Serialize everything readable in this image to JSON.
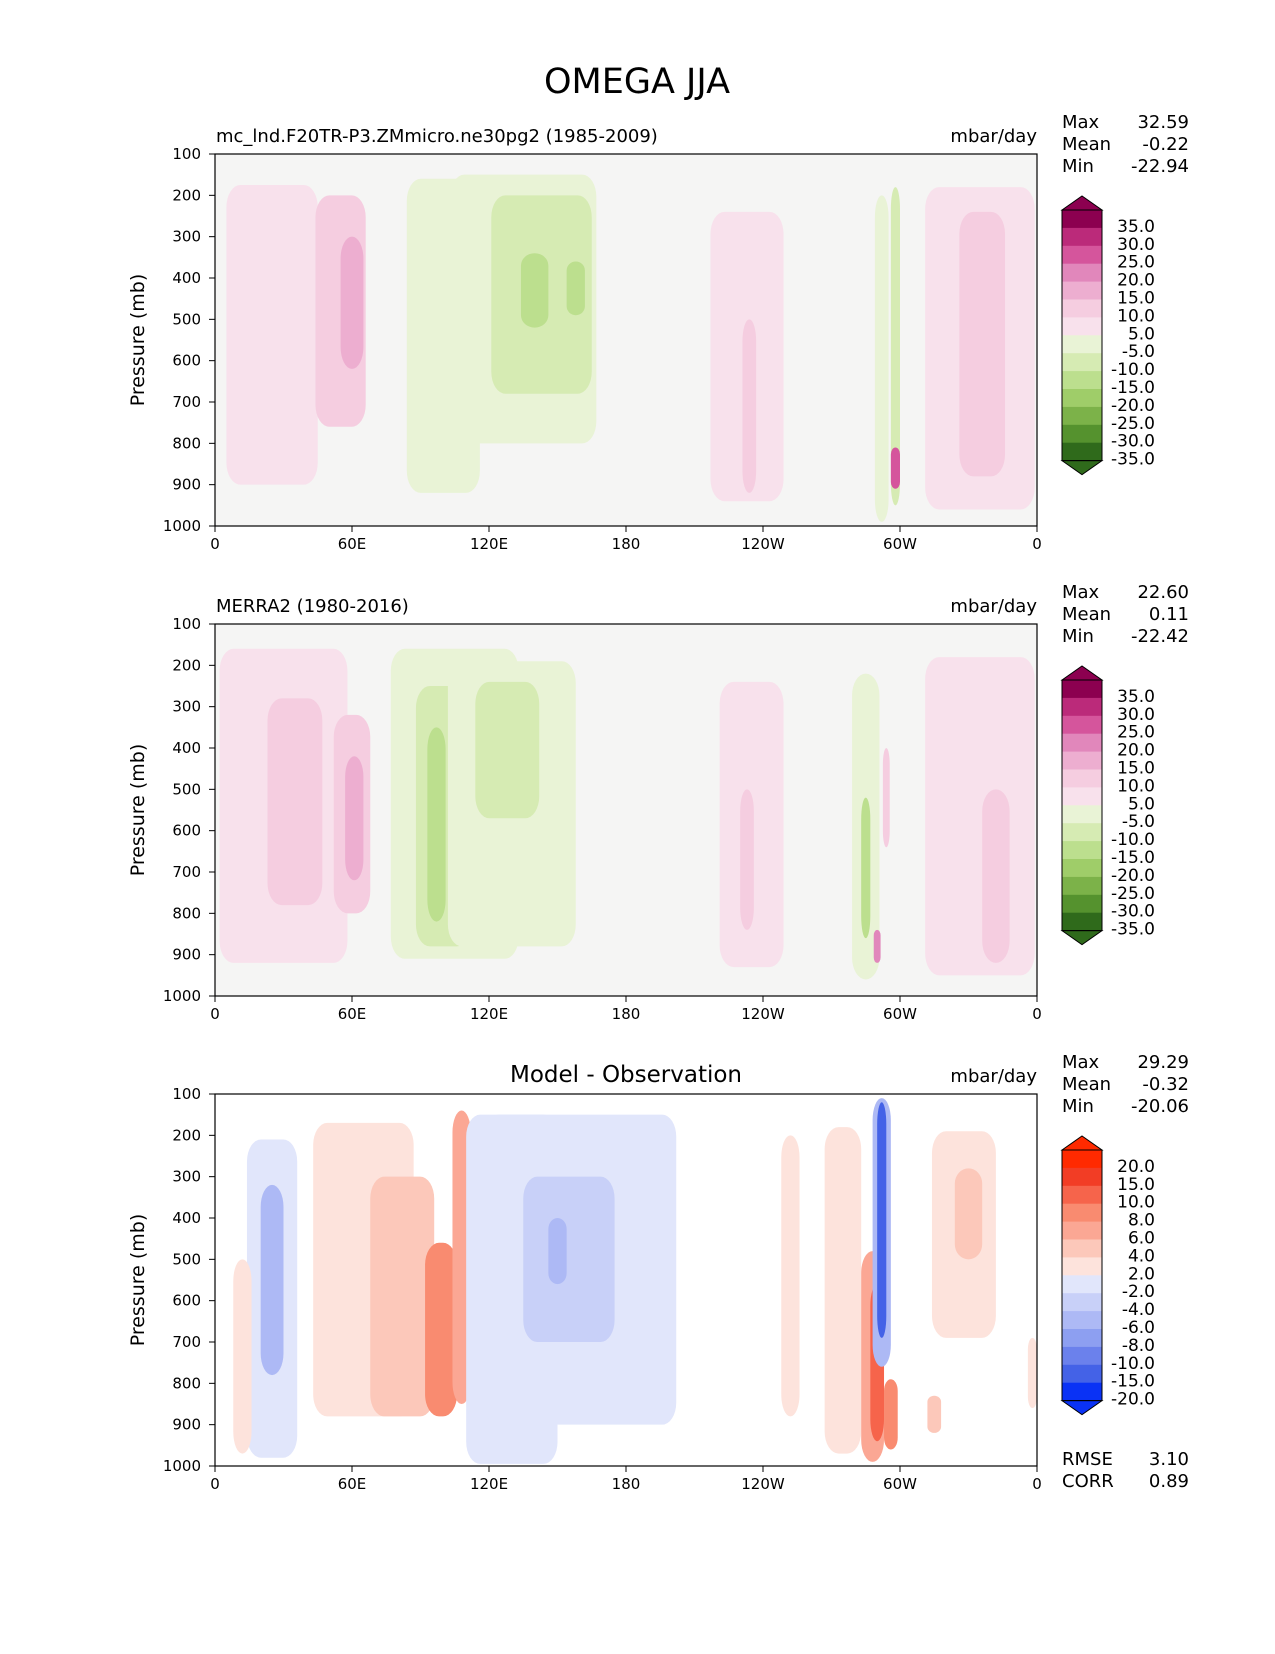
{
  "title": "OMEGA JJA",
  "colors": {
    "positive_ramp": [
      "#f8e1ec",
      "#f5cde0",
      "#edaed0",
      "#e187bb",
      "#d5559c",
      "#bb2a7a",
      "#8c0050"
    ],
    "negative_ramp": [
      "#e9f3d6",
      "#d6ebb3",
      "#bcdf8e",
      "#9fcd69",
      "#7cb249",
      "#55922e",
      "#2f6a1b"
    ],
    "diff_positive_ramp": [
      "#fde3dc",
      "#fcc8ba",
      "#fba794",
      "#f98b70",
      "#f6644b",
      "#f23d25",
      "#ff2a00"
    ],
    "diff_negative_ramp": [
      "#e1e6fb",
      "#c8d0f8",
      "#adb9f5",
      "#8d9ff1",
      "#6b81ec",
      "#4462e7",
      "#0a32f5"
    ],
    "background": "#f5f5f4"
  },
  "chart_data": [
    {
      "type": "heatmap",
      "title": "mc_lnd.F20TR-P3.ZMmicro.ne30pg2 (1985-2009)",
      "units": "mbar/day",
      "ylabel": "Pressure (mb)",
      "x_ticks": [
        "0",
        "60E",
        "120E",
        "180",
        "120W",
        "60W",
        "0"
      ],
      "y_ticks": [
        "100",
        "200",
        "300",
        "400",
        "500",
        "600",
        "700",
        "800",
        "900",
        "1000"
      ],
      "xlim": [
        0,
        360
      ],
      "ylim": [
        1000,
        100
      ],
      "stats": {
        "Max": "32.59",
        "Mean": "-0.22",
        "Min": "-22.94"
      },
      "colorbar_labels": [
        "35.0",
        "30.0",
        "25.0",
        "20.0",
        "15.0",
        "10.0",
        "5.0",
        "-5.0",
        "-10.0",
        "-15.0",
        "-20.0",
        "-25.0",
        "-30.0",
        "-35.0"
      ],
      "features": [
        {
          "lon": 25,
          "p_top": 175,
          "p_bot": 900,
          "half_width": 20,
          "level": 1
        },
        {
          "lon": 55,
          "p_top": 200,
          "p_bot": 760,
          "half_width": 11,
          "level": 2
        },
        {
          "lon": 60,
          "p_top": 300,
          "p_bot": 620,
          "half_width": 5,
          "level": 3
        },
        {
          "lon": 100,
          "p_top": 160,
          "p_bot": 920,
          "half_width": 16,
          "level": -1
        },
        {
          "lon": 135,
          "p_top": 150,
          "p_bot": 800,
          "half_width": 32,
          "level": -1
        },
        {
          "lon": 143,
          "p_top": 200,
          "p_bot": 680,
          "half_width": 22,
          "level": -2
        },
        {
          "lon": 140,
          "p_top": 340,
          "p_bot": 520,
          "half_width": 6,
          "level": -3
        },
        {
          "lon": 158,
          "p_top": 360,
          "p_bot": 490,
          "half_width": 4,
          "level": -3
        },
        {
          "lon": 233,
          "p_top": 240,
          "p_bot": 940,
          "half_width": 16,
          "level": 1
        },
        {
          "lon": 234,
          "p_top": 500,
          "p_bot": 920,
          "half_width": 3,
          "level": 2
        },
        {
          "lon": 292,
          "p_top": 200,
          "p_bot": 990,
          "half_width": 3,
          "level": -1
        },
        {
          "lon": 298,
          "p_top": 180,
          "p_bot": 950,
          "half_width": 2,
          "level": -2
        },
        {
          "lon": 298,
          "p_top": 810,
          "p_bot": 910,
          "half_width": 2,
          "level": 5
        },
        {
          "lon": 335,
          "p_top": 180,
          "p_bot": 960,
          "half_width": 24,
          "level": 1
        },
        {
          "lon": 336,
          "p_top": 240,
          "p_bot": 880,
          "half_width": 10,
          "level": 2
        }
      ]
    },
    {
      "type": "heatmap",
      "title": "MERRA2 (1980-2016)",
      "units": "mbar/day",
      "ylabel": "Pressure (mb)",
      "x_ticks": [
        "0",
        "60E",
        "120E",
        "180",
        "120W",
        "60W",
        "0"
      ],
      "y_ticks": [
        "100",
        "200",
        "300",
        "400",
        "500",
        "600",
        "700",
        "800",
        "900",
        "1000"
      ],
      "xlim": [
        0,
        360
      ],
      "ylim": [
        1000,
        100
      ],
      "stats": {
        "Max": "22.60",
        "Mean": "0.11",
        "Min": "-22.42"
      },
      "colorbar_labels": [
        "35.0",
        "30.0",
        "25.0",
        "20.0",
        "15.0",
        "10.0",
        "5.0",
        "-5.0",
        "-10.0",
        "-15.0",
        "-20.0",
        "-25.0",
        "-30.0",
        "-35.0"
      ],
      "features": [
        {
          "lon": 30,
          "p_top": 160,
          "p_bot": 920,
          "half_width": 28,
          "level": 1
        },
        {
          "lon": 35,
          "p_top": 280,
          "p_bot": 780,
          "half_width": 12,
          "level": 2
        },
        {
          "lon": 60,
          "p_top": 320,
          "p_bot": 800,
          "half_width": 8,
          "level": 2
        },
        {
          "lon": 61,
          "p_top": 420,
          "p_bot": 720,
          "half_width": 4,
          "level": 3
        },
        {
          "lon": 105,
          "p_top": 160,
          "p_bot": 910,
          "half_width": 28,
          "level": -1
        },
        {
          "lon": 100,
          "p_top": 250,
          "p_bot": 880,
          "half_width": 12,
          "level": -2
        },
        {
          "lon": 97,
          "p_top": 350,
          "p_bot": 820,
          "half_width": 4,
          "level": -3
        },
        {
          "lon": 130,
          "p_top": 190,
          "p_bot": 880,
          "half_width": 28,
          "level": -1
        },
        {
          "lon": 128,
          "p_top": 240,
          "p_bot": 570,
          "half_width": 14,
          "level": -2
        },
        {
          "lon": 235,
          "p_top": 240,
          "p_bot": 930,
          "half_width": 14,
          "level": 1
        },
        {
          "lon": 233,
          "p_top": 500,
          "p_bot": 840,
          "half_width": 3,
          "level": 2
        },
        {
          "lon": 285,
          "p_top": 220,
          "p_bot": 960,
          "half_width": 6,
          "level": -1
        },
        {
          "lon": 285,
          "p_top": 520,
          "p_bot": 860,
          "half_width": 2,
          "level": -3
        },
        {
          "lon": 294,
          "p_top": 400,
          "p_bot": 640,
          "half_width": 1.5,
          "level": 2
        },
        {
          "lon": 290,
          "p_top": 840,
          "p_bot": 920,
          "half_width": 1.5,
          "level": 4
        },
        {
          "lon": 335,
          "p_top": 180,
          "p_bot": 950,
          "half_width": 24,
          "level": 1
        },
        {
          "lon": 342,
          "p_top": 500,
          "p_bot": 920,
          "half_width": 6,
          "level": 2
        }
      ]
    },
    {
      "type": "heatmap",
      "title": "Model - Observation",
      "units": "mbar/day",
      "ylabel": "Pressure (mb)",
      "x_ticks": [
        "0",
        "60E",
        "120E",
        "180",
        "120W",
        "60W",
        "0"
      ],
      "y_ticks": [
        "100",
        "200",
        "300",
        "400",
        "500",
        "600",
        "700",
        "800",
        "900",
        "1000"
      ],
      "xlim": [
        0,
        360
      ],
      "ylim": [
        1000,
        100
      ],
      "stats": {
        "Max": "29.29",
        "Mean": "-0.32",
        "Min": "-20.06"
      },
      "metrics": {
        "RMSE": "3.10",
        "CORR": "0.89"
      },
      "colorbar_labels": [
        "20.0",
        "15.0",
        "10.0",
        "8.0",
        "6.0",
        "4.0",
        "2.0",
        "-2.0",
        "-4.0",
        "-6.0",
        "-8.0",
        "-10.0",
        "-15.0",
        "-20.0"
      ],
      "features": [
        {
          "lon": 25,
          "p_top": 210,
          "p_bot": 980,
          "half_width": 11,
          "level": -1
        },
        {
          "lon": 25,
          "p_top": 320,
          "p_bot": 780,
          "half_width": 5,
          "level": -3
        },
        {
          "lon": 12,
          "p_top": 500,
          "p_bot": 970,
          "half_width": 4,
          "level": 1
        },
        {
          "lon": 65,
          "p_top": 170,
          "p_bot": 880,
          "half_width": 22,
          "level": 1
        },
        {
          "lon": 82,
          "p_top": 300,
          "p_bot": 880,
          "half_width": 14,
          "level": 2
        },
        {
          "lon": 99,
          "p_top": 460,
          "p_bot": 880,
          "half_width": 7,
          "level": 4
        },
        {
          "lon": 108,
          "p_top": 140,
          "p_bot": 850,
          "half_width": 4,
          "level": 3
        },
        {
          "lon": 130,
          "p_top": 150,
          "p_bot": 995,
          "half_width": 20,
          "level": -1
        },
        {
          "lon": 135,
          "p_top": 200,
          "p_bot": 700,
          "half_width": 8,
          "level": -2
        },
        {
          "lon": 160,
          "p_top": 150,
          "p_bot": 900,
          "half_width": 42,
          "level": -1
        },
        {
          "lon": 155,
          "p_top": 300,
          "p_bot": 700,
          "half_width": 20,
          "level": -2
        },
        {
          "lon": 150,
          "p_top": 400,
          "p_bot": 560,
          "half_width": 4,
          "level": -3
        },
        {
          "lon": 252,
          "p_top": 200,
          "p_bot": 880,
          "half_width": 4,
          "level": 1
        },
        {
          "lon": 275,
          "p_top": 180,
          "p_bot": 970,
          "half_width": 8,
          "level": 1
        },
        {
          "lon": 288,
          "p_top": 480,
          "p_bot": 990,
          "half_width": 5,
          "level": 3
        },
        {
          "lon": 290,
          "p_top": 560,
          "p_bot": 940,
          "half_width": 3,
          "level": 5
        },
        {
          "lon": 292,
          "p_top": 110,
          "p_bot": 760,
          "half_width": 4,
          "level": -3
        },
        {
          "lon": 292,
          "p_top": 120,
          "p_bot": 690,
          "half_width": 2,
          "level": -6
        },
        {
          "lon": 296,
          "p_top": 790,
          "p_bot": 960,
          "half_width": 3,
          "level": 4
        },
        {
          "lon": 315,
          "p_top": 830,
          "p_bot": 920,
          "half_width": 3,
          "level": 2
        },
        {
          "lon": 328,
          "p_top": 190,
          "p_bot": 690,
          "half_width": 14,
          "level": 1
        },
        {
          "lon": 330,
          "p_top": 280,
          "p_bot": 500,
          "half_width": 6,
          "level": 2
        },
        {
          "lon": 358,
          "p_top": 690,
          "p_bot": 860,
          "half_width": 2,
          "level": 1
        }
      ]
    }
  ]
}
